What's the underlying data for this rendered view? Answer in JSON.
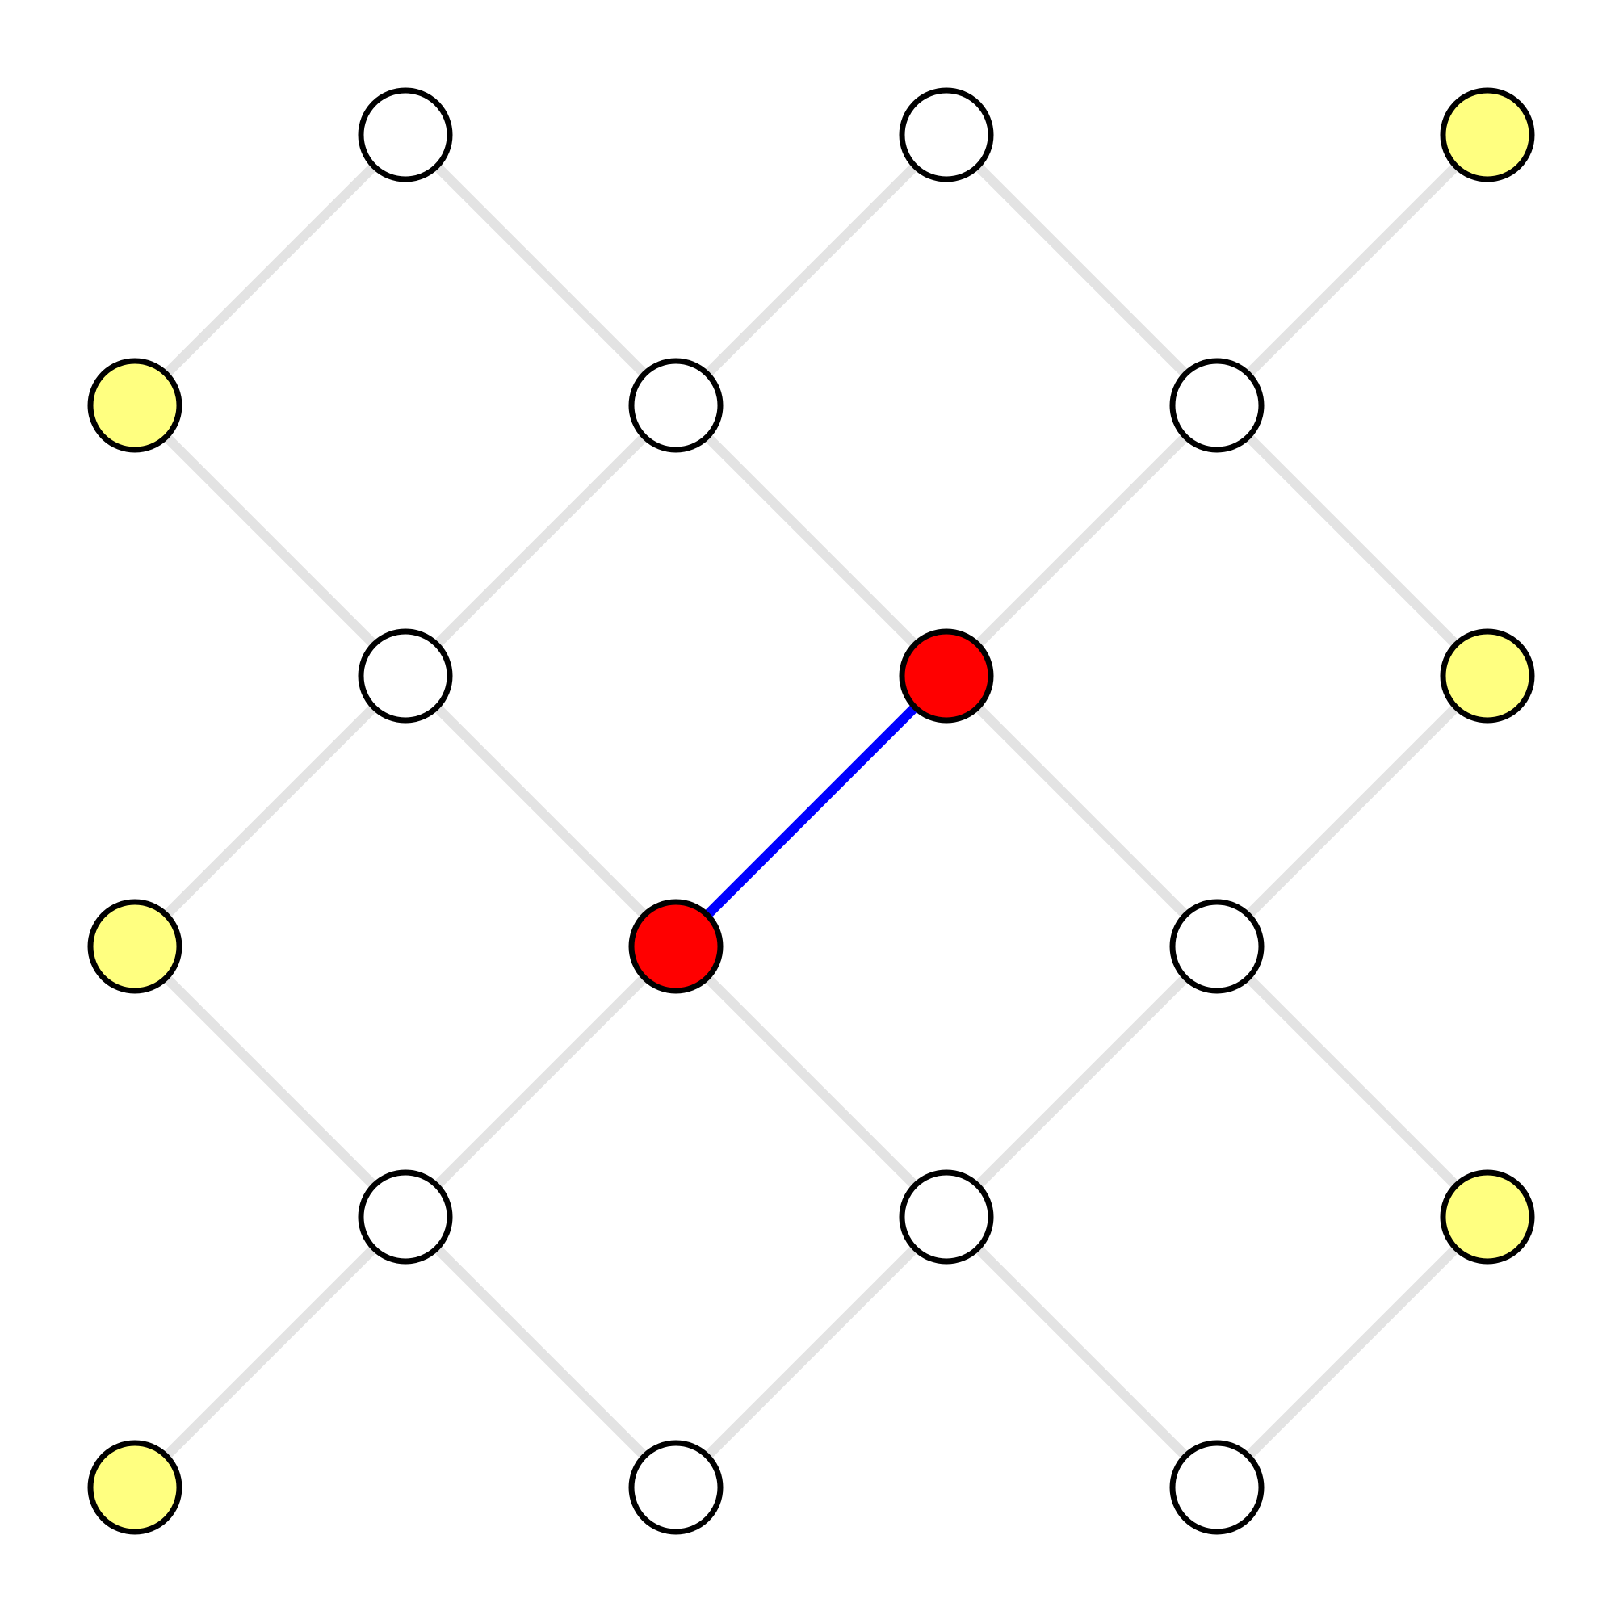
{
  "colors": {
    "background": "#ffffff",
    "edge_default": "#e3e3e3",
    "edge_highlight": "#0000ff",
    "node_stroke": "#000000",
    "node_default": "#ffffff",
    "node_boundary": "#ffff80",
    "node_selected": "#ff0000"
  },
  "grid": {
    "rows": 6,
    "cols": 6
  },
  "nodes": [
    {
      "id": "n-0-1",
      "row": 0,
      "col": 1,
      "state": "default"
    },
    {
      "id": "n-0-3",
      "row": 0,
      "col": 3,
      "state": "default"
    },
    {
      "id": "n-0-5",
      "row": 0,
      "col": 5,
      "state": "boundary"
    },
    {
      "id": "n-1-0",
      "row": 1,
      "col": 0,
      "state": "boundary"
    },
    {
      "id": "n-1-2",
      "row": 1,
      "col": 2,
      "state": "default"
    },
    {
      "id": "n-1-4",
      "row": 1,
      "col": 4,
      "state": "default"
    },
    {
      "id": "n-2-1",
      "row": 2,
      "col": 1,
      "state": "default"
    },
    {
      "id": "n-2-3",
      "row": 2,
      "col": 3,
      "state": "selected"
    },
    {
      "id": "n-2-5",
      "row": 2,
      "col": 5,
      "state": "boundary"
    },
    {
      "id": "n-3-0",
      "row": 3,
      "col": 0,
      "state": "boundary"
    },
    {
      "id": "n-3-2",
      "row": 3,
      "col": 2,
      "state": "selected"
    },
    {
      "id": "n-3-4",
      "row": 3,
      "col": 4,
      "state": "default"
    },
    {
      "id": "n-4-1",
      "row": 4,
      "col": 1,
      "state": "default"
    },
    {
      "id": "n-4-3",
      "row": 4,
      "col": 3,
      "state": "default"
    },
    {
      "id": "n-4-5",
      "row": 4,
      "col": 5,
      "state": "boundary"
    },
    {
      "id": "n-5-0",
      "row": 5,
      "col": 0,
      "state": "boundary"
    },
    {
      "id": "n-5-2",
      "row": 5,
      "col": 2,
      "state": "default"
    },
    {
      "id": "n-5-4",
      "row": 5,
      "col": 4,
      "state": "default"
    }
  ],
  "edges": [
    {
      "from": "n-0-1",
      "to": "n-1-0",
      "state": "default"
    },
    {
      "from": "n-0-1",
      "to": "n-1-2",
      "state": "default"
    },
    {
      "from": "n-0-3",
      "to": "n-1-2",
      "state": "default"
    },
    {
      "from": "n-0-3",
      "to": "n-1-4",
      "state": "default"
    },
    {
      "from": "n-0-5",
      "to": "n-1-4",
      "state": "default"
    },
    {
      "from": "n-1-0",
      "to": "n-2-1",
      "state": "default"
    },
    {
      "from": "n-1-2",
      "to": "n-2-1",
      "state": "default"
    },
    {
      "from": "n-1-2",
      "to": "n-2-3",
      "state": "default"
    },
    {
      "from": "n-1-4",
      "to": "n-2-3",
      "state": "default"
    },
    {
      "from": "n-1-4",
      "to": "n-2-5",
      "state": "default"
    },
    {
      "from": "n-2-1",
      "to": "n-3-0",
      "state": "default"
    },
    {
      "from": "n-2-1",
      "to": "n-3-2",
      "state": "default"
    },
    {
      "from": "n-2-3",
      "to": "n-3-2",
      "state": "highlight"
    },
    {
      "from": "n-2-3",
      "to": "n-3-4",
      "state": "default"
    },
    {
      "from": "n-2-5",
      "to": "n-3-4",
      "state": "default"
    },
    {
      "from": "n-3-0",
      "to": "n-4-1",
      "state": "default"
    },
    {
      "from": "n-3-2",
      "to": "n-4-1",
      "state": "default"
    },
    {
      "from": "n-3-2",
      "to": "n-4-3",
      "state": "default"
    },
    {
      "from": "n-3-4",
      "to": "n-4-3",
      "state": "default"
    },
    {
      "from": "n-3-4",
      "to": "n-4-5",
      "state": "default"
    },
    {
      "from": "n-4-1",
      "to": "n-5-0",
      "state": "default"
    },
    {
      "from": "n-4-1",
      "to": "n-5-2",
      "state": "default"
    },
    {
      "from": "n-4-3",
      "to": "n-5-2",
      "state": "default"
    },
    {
      "from": "n-4-3",
      "to": "n-5-4",
      "state": "default"
    },
    {
      "from": "n-4-5",
      "to": "n-5-4",
      "state": "default"
    }
  ]
}
